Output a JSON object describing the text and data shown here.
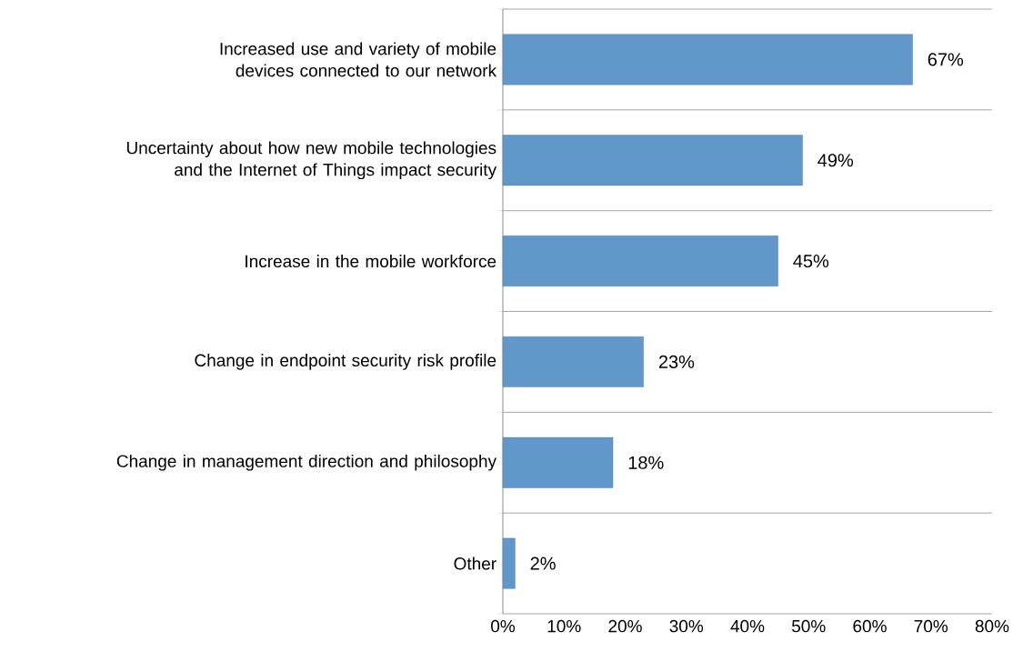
{
  "chart_data": {
    "type": "bar",
    "orientation": "horizontal",
    "categories": [
      "Increased use and variety of mobile devices connected to our network",
      "Uncertainty about how new mobile technologies and the Internet of Things impact security",
      "Increase in the mobile workforce",
      "Change in endpoint security risk profile",
      "Change in management direction and philosophy",
      "Other"
    ],
    "values": [
      67,
      49,
      45,
      23,
      18,
      2
    ],
    "value_labels": [
      "67%",
      "49%",
      "45%",
      "23%",
      "18%",
      "2%"
    ],
    "color": "#6297c9",
    "xlim": [
      0,
      80
    ],
    "xticks": [
      {
        "value": 0,
        "label": "0%"
      },
      {
        "value": 10,
        "label": "10%"
      },
      {
        "value": 20,
        "label": "20%"
      },
      {
        "value": 30,
        "label": "30%"
      },
      {
        "value": 40,
        "label": "40%"
      },
      {
        "value": 50,
        "label": "50%"
      },
      {
        "value": 60,
        "label": "60%"
      },
      {
        "value": 70,
        "label": "70%"
      },
      {
        "value": 80,
        "label": "80%"
      }
    ],
    "grid": "y"
  }
}
